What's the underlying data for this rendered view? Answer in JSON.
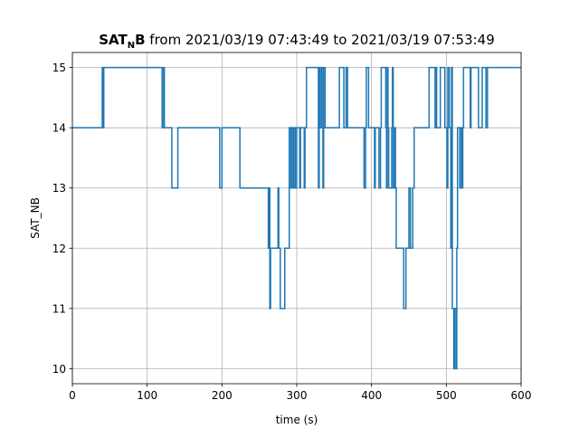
{
  "title": {
    "bold_main": "SAT",
    "bold_sub": "N",
    "bold_tail": "B",
    "rest": " from 2021/03/19 07:43:49 to 2021/03/19 07:53:49"
  },
  "chart_data": {
    "type": "line",
    "step": true,
    "xlabel": "time (s)",
    "ylabel": "SAT_NB",
    "xlim": [
      0,
      600
    ],
    "ylim": [
      9.75,
      15.25
    ],
    "xticks": [
      0,
      100,
      200,
      300,
      400,
      500,
      600
    ],
    "yticks": [
      10,
      11,
      12,
      13,
      14,
      15
    ],
    "grid": true,
    "series": [
      {
        "color": "#1f77b4",
        "points": [
          [
            0,
            14
          ],
          [
            40,
            14
          ],
          [
            40,
            15
          ],
          [
            41,
            15
          ],
          [
            41,
            14
          ],
          [
            42,
            14
          ],
          [
            42,
            15
          ],
          [
            120,
            15
          ],
          [
            120,
            14
          ],
          [
            122,
            14
          ],
          [
            122,
            15
          ],
          [
            123,
            15
          ],
          [
            123,
            14
          ],
          [
            133,
            14
          ],
          [
            133,
            13
          ],
          [
            141,
            13
          ],
          [
            141,
            14
          ],
          [
            197,
            14
          ],
          [
            197,
            13
          ],
          [
            200,
            13
          ],
          [
            200,
            14
          ],
          [
            224,
            14
          ],
          [
            224,
            13
          ],
          [
            262,
            13
          ],
          [
            262,
            12
          ],
          [
            263,
            12
          ],
          [
            263,
            13
          ],
          [
            264,
            13
          ],
          [
            264,
            11
          ],
          [
            265,
            11
          ],
          [
            265,
            12
          ],
          [
            275,
            12
          ],
          [
            275,
            13
          ],
          [
            276,
            13
          ],
          [
            276,
            12
          ],
          [
            278,
            12
          ],
          [
            278,
            11
          ],
          [
            284,
            11
          ],
          [
            284,
            12
          ],
          [
            290,
            12
          ],
          [
            290,
            14
          ],
          [
            292,
            14
          ],
          [
            292,
            13
          ],
          [
            293,
            13
          ],
          [
            293,
            14
          ],
          [
            295,
            14
          ],
          [
            295,
            13
          ],
          [
            296,
            13
          ],
          [
            296,
            14
          ],
          [
            298,
            14
          ],
          [
            298,
            13
          ],
          [
            300,
            13
          ],
          [
            300,
            14
          ],
          [
            304,
            14
          ],
          [
            304,
            13
          ],
          [
            305,
            13
          ],
          [
            305,
            14
          ],
          [
            310,
            14
          ],
          [
            310,
            13
          ],
          [
            311,
            13
          ],
          [
            311,
            14
          ],
          [
            313,
            14
          ],
          [
            313,
            15
          ],
          [
            329,
            15
          ],
          [
            329,
            13
          ],
          [
            330,
            13
          ],
          [
            330,
            15
          ],
          [
            331,
            15
          ],
          [
            331,
            14
          ],
          [
            333,
            14
          ],
          [
            333,
            15
          ],
          [
            335,
            15
          ],
          [
            335,
            13
          ],
          [
            336,
            13
          ],
          [
            336,
            15
          ],
          [
            338,
            15
          ],
          [
            338,
            14
          ],
          [
            357,
            14
          ],
          [
            357,
            15
          ],
          [
            363,
            15
          ],
          [
            363,
            14
          ],
          [
            366,
            14
          ],
          [
            366,
            15
          ],
          [
            368,
            15
          ],
          [
            368,
            14
          ],
          [
            390,
            14
          ],
          [
            390,
            13
          ],
          [
            392,
            13
          ],
          [
            392,
            14
          ],
          [
            393,
            14
          ],
          [
            393,
            15
          ],
          [
            396,
            15
          ],
          [
            396,
            14
          ],
          [
            404,
            14
          ],
          [
            404,
            13
          ],
          [
            405,
            13
          ],
          [
            405,
            14
          ],
          [
            410,
            14
          ],
          [
            410,
            13
          ],
          [
            412,
            13
          ],
          [
            412,
            14
          ],
          [
            413,
            14
          ],
          [
            413,
            15
          ],
          [
            419,
            15
          ],
          [
            419,
            14
          ],
          [
            420,
            14
          ],
          [
            420,
            13
          ],
          [
            421,
            13
          ],
          [
            421,
            15
          ],
          [
            422,
            15
          ],
          [
            422,
            14
          ],
          [
            423,
            14
          ],
          [
            423,
            13
          ],
          [
            427,
            13
          ],
          [
            427,
            14
          ],
          [
            428,
            14
          ],
          [
            428,
            15
          ],
          [
            429,
            15
          ],
          [
            429,
            13
          ],
          [
            431,
            13
          ],
          [
            431,
            14
          ],
          [
            432,
            14
          ],
          [
            432,
            13
          ],
          [
            433,
            13
          ],
          [
            433,
            12
          ],
          [
            443,
            12
          ],
          [
            443,
            11
          ],
          [
            446,
            11
          ],
          [
            446,
            12
          ],
          [
            450,
            12
          ],
          [
            450,
            13
          ],
          [
            452,
            13
          ],
          [
            452,
            12
          ],
          [
            455,
            12
          ],
          [
            455,
            13
          ],
          [
            457,
            13
          ],
          [
            457,
            14
          ],
          [
            477,
            14
          ],
          [
            477,
            15
          ],
          [
            485,
            15
          ],
          [
            485,
            14
          ],
          [
            486,
            14
          ],
          [
            486,
            15
          ],
          [
            487,
            15
          ],
          [
            487,
            14
          ],
          [
            492,
            14
          ],
          [
            492,
            15
          ],
          [
            498,
            15
          ],
          [
            498,
            14
          ],
          [
            501,
            14
          ],
          [
            501,
            13
          ],
          [
            502,
            13
          ],
          [
            502,
            15
          ],
          [
            504,
            15
          ],
          [
            504,
            14
          ],
          [
            506,
            14
          ],
          [
            506,
            12
          ],
          [
            507,
            12
          ],
          [
            507,
            15
          ],
          [
            508,
            15
          ],
          [
            508,
            11
          ],
          [
            510,
            11
          ],
          [
            510,
            10
          ],
          [
            511,
            10
          ],
          [
            511,
            11
          ],
          [
            513,
            11
          ],
          [
            513,
            10
          ],
          [
            514,
            10
          ],
          [
            514,
            12
          ],
          [
            515,
            12
          ],
          [
            515,
            14
          ],
          [
            518,
            14
          ],
          [
            518,
            13
          ],
          [
            519,
            13
          ],
          [
            519,
            14
          ],
          [
            521,
            14
          ],
          [
            521,
            13
          ],
          [
            522,
            13
          ],
          [
            522,
            14
          ],
          [
            523,
            14
          ],
          [
            523,
            15
          ],
          [
            532,
            15
          ],
          [
            532,
            14
          ],
          [
            533,
            14
          ],
          [
            533,
            15
          ],
          [
            543,
            15
          ],
          [
            543,
            14
          ],
          [
            548,
            14
          ],
          [
            548,
            15
          ],
          [
            553,
            15
          ],
          [
            553,
            14
          ],
          [
            555,
            14
          ],
          [
            555,
            15
          ],
          [
            600,
            15
          ]
        ]
      }
    ]
  }
}
